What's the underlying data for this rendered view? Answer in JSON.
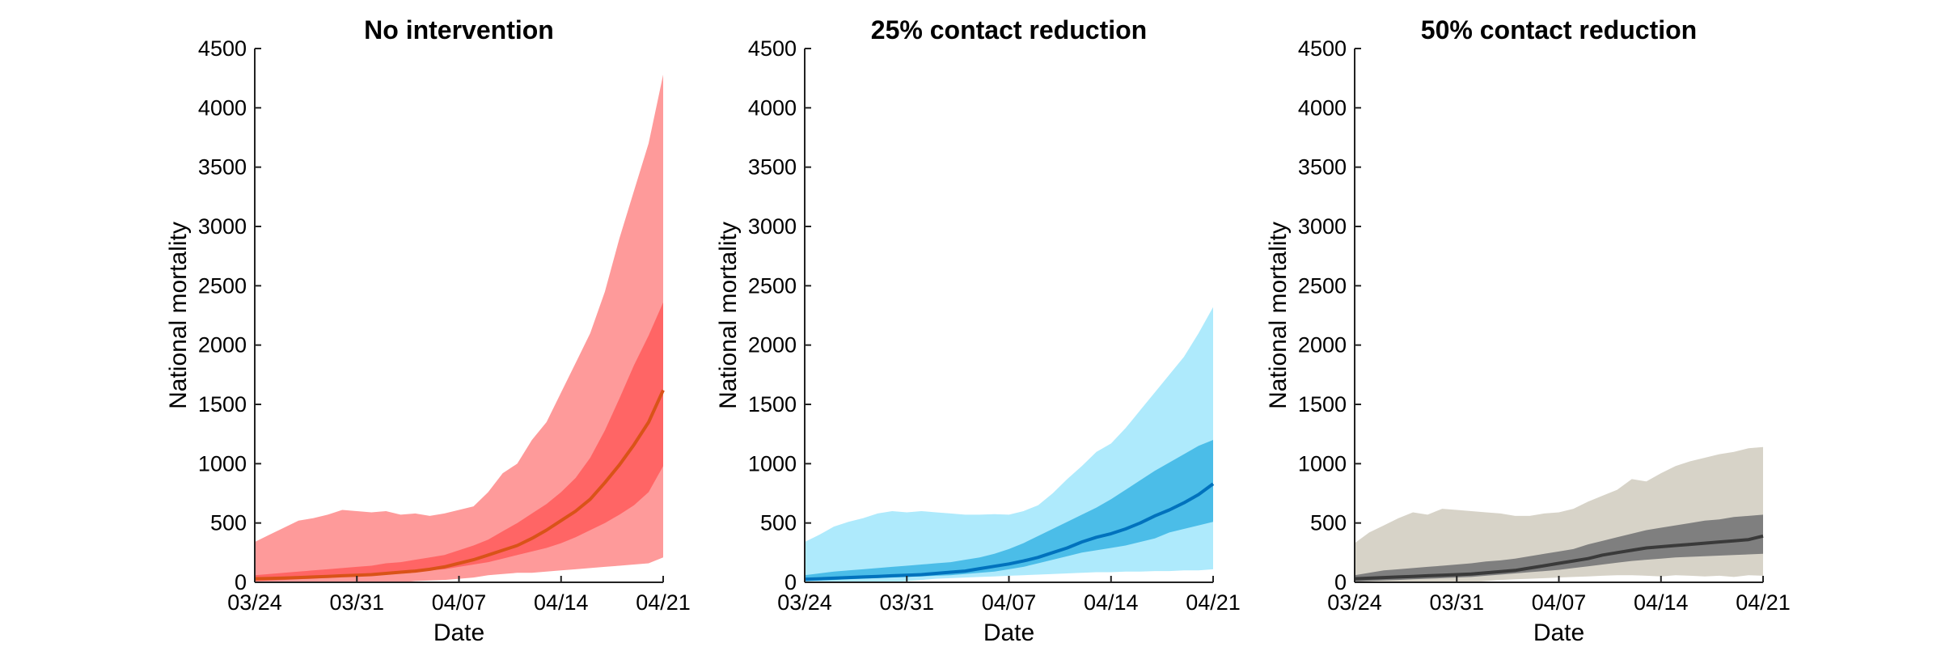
{
  "chart_data": [
    {
      "type": "area",
      "title": "No intervention",
      "xlabel": "Date",
      "ylabel": "National mortality",
      "ylim": [
        0,
        4500
      ],
      "yticks": [
        "0",
        "500",
        "1000",
        "1500",
        "2000",
        "2500",
        "3000",
        "3500",
        "4000",
        "4500"
      ],
      "xticks": [
        "03/24",
        "03/31",
        "04/07",
        "04/14",
        "04/21"
      ],
      "x": [
        "03/24",
        "03/25",
        "03/26",
        "03/27",
        "03/28",
        "03/29",
        "03/30",
        "03/31",
        "04/01",
        "04/02",
        "04/03",
        "04/04",
        "04/05",
        "04/06",
        "04/07",
        "04/08",
        "04/09",
        "04/10",
        "04/11",
        "04/12",
        "04/13",
        "04/14",
        "04/15",
        "04/16",
        "04/17",
        "04/18",
        "04/19",
        "04/20",
        "04/21"
      ],
      "colors": {
        "outer": "#fe9a9a",
        "inner": "#ff6565",
        "line": "#d95318"
      },
      "series": [
        {
          "band": "outer",
          "lower": [
            0,
            0,
            0,
            0,
            0,
            0,
            0,
            0,
            0,
            0,
            0,
            10,
            15,
            20,
            30,
            40,
            60,
            70,
            80,
            80,
            90,
            100,
            110,
            120,
            130,
            140,
            150,
            160,
            210
          ],
          "upper": [
            340,
            400,
            460,
            520,
            540,
            570,
            610,
            600,
            590,
            600,
            570,
            580,
            560,
            580,
            610,
            640,
            760,
            920,
            1000,
            1200,
            1350,
            1600,
            1850,
            2100,
            2450,
            2900,
            3300,
            3700,
            4280
          ]
        },
        {
          "band": "inner",
          "lower": [
            10,
            15,
            20,
            25,
            30,
            40,
            50,
            55,
            60,
            70,
            80,
            90,
            100,
            110,
            130,
            150,
            170,
            200,
            230,
            260,
            290,
            330,
            380,
            440,
            500,
            570,
            650,
            760,
            980
          ],
          "upper": [
            60,
            70,
            80,
            90,
            100,
            110,
            120,
            130,
            140,
            160,
            170,
            190,
            210,
            230,
            270,
            310,
            360,
            430,
            500,
            580,
            660,
            760,
            880,
            1050,
            1280,
            1550,
            1830,
            2080,
            2360
          ]
        },
        {
          "band": "line",
          "values": [
            30,
            33,
            36,
            40,
            45,
            50,
            55,
            60,
            65,
            75,
            85,
            95,
            110,
            130,
            160,
            190,
            230,
            270,
            310,
            370,
            440,
            520,
            600,
            700,
            840,
            990,
            1160,
            1350,
            1620
          ]
        }
      ]
    },
    {
      "type": "area",
      "title": "25% contact reduction",
      "xlabel": "Date",
      "ylabel": "National mortality",
      "ylim": [
        0,
        4500
      ],
      "yticks": [
        "0",
        "500",
        "1000",
        "1500",
        "2000",
        "2500",
        "3000",
        "3500",
        "4000",
        "4500"
      ],
      "xticks": [
        "03/24",
        "03/31",
        "04/07",
        "04/14",
        "04/21"
      ],
      "x": [
        "03/24",
        "03/25",
        "03/26",
        "03/27",
        "03/28",
        "03/29",
        "03/30",
        "03/31",
        "04/01",
        "04/02",
        "04/03",
        "04/04",
        "04/05",
        "04/06",
        "04/07",
        "04/08",
        "04/09",
        "04/10",
        "04/11",
        "04/12",
        "04/13",
        "04/14",
        "04/15",
        "04/16",
        "04/17",
        "04/18",
        "04/19",
        "04/20",
        "04/21"
      ],
      "colors": {
        "outer": "#aeeafc",
        "inner": "#4bbde8",
        "line": "#0072bd"
      },
      "series": [
        {
          "band": "outer",
          "lower": [
            0,
            0,
            0,
            0,
            0,
            0,
            0,
            10,
            20,
            30,
            35,
            40,
            45,
            50,
            55,
            60,
            65,
            70,
            75,
            80,
            85,
            85,
            90,
            90,
            95,
            95,
            100,
            100,
            110
          ],
          "upper": [
            340,
            400,
            470,
            510,
            540,
            580,
            600,
            590,
            600,
            590,
            580,
            570,
            570,
            575,
            570,
            600,
            650,
            750,
            870,
            980,
            1100,
            1170,
            1300,
            1450,
            1600,
            1750,
            1900,
            2100,
            2320
          ]
        },
        {
          "band": "inner",
          "lower": [
            10,
            15,
            20,
            25,
            30,
            35,
            40,
            45,
            50,
            55,
            60,
            70,
            80,
            90,
            110,
            130,
            160,
            190,
            220,
            250,
            270,
            290,
            310,
            340,
            370,
            420,
            450,
            480,
            510
          ],
          "upper": [
            60,
            75,
            90,
            100,
            110,
            120,
            130,
            140,
            150,
            160,
            170,
            190,
            210,
            240,
            280,
            330,
            390,
            450,
            510,
            570,
            630,
            700,
            780,
            860,
            940,
            1010,
            1080,
            1150,
            1200
          ]
        },
        {
          "band": "line",
          "values": [
            25,
            30,
            35,
            40,
            45,
            50,
            55,
            60,
            65,
            75,
            85,
            95,
            115,
            135,
            155,
            180,
            210,
            250,
            290,
            340,
            380,
            410,
            450,
            500,
            560,
            610,
            670,
            740,
            830
          ]
        }
      ]
    },
    {
      "type": "area",
      "title": "50% contact reduction",
      "xlabel": "Date",
      "ylabel": "National mortality",
      "ylim": [
        0,
        4500
      ],
      "yticks": [
        "0",
        "500",
        "1000",
        "1500",
        "2000",
        "2500",
        "3000",
        "3500",
        "4000",
        "4500"
      ],
      "xticks": [
        "03/24",
        "03/31",
        "04/07",
        "04/14",
        "04/21"
      ],
      "x": [
        "03/24",
        "03/25",
        "03/26",
        "03/27",
        "03/28",
        "03/29",
        "03/30",
        "03/31",
        "04/01",
        "04/02",
        "04/03",
        "04/04",
        "04/05",
        "04/06",
        "04/07",
        "04/08",
        "04/09",
        "04/10",
        "04/11",
        "04/12",
        "04/13",
        "04/14",
        "04/15",
        "04/16",
        "04/17",
        "04/18",
        "04/19",
        "04/20",
        "04/21"
      ],
      "colors": {
        "outer": "#d7d3c8",
        "inner": "#7f7f7f",
        "line": "#3a3a3a"
      },
      "series": [
        {
          "band": "outer",
          "lower": [
            0,
            0,
            0,
            0,
            0,
            0,
            0,
            0,
            0,
            10,
            20,
            25,
            30,
            35,
            40,
            45,
            50,
            55,
            60,
            60,
            55,
            50,
            60,
            55,
            50,
            55,
            45,
            60,
            55
          ],
          "upper": [
            330,
            420,
            480,
            540,
            590,
            570,
            620,
            610,
            600,
            590,
            580,
            560,
            560,
            580,
            590,
            620,
            680,
            730,
            780,
            870,
            850,
            920,
            980,
            1020,
            1050,
            1080,
            1100,
            1130,
            1140
          ]
        },
        {
          "band": "inner",
          "lower": [
            5,
            10,
            15,
            20,
            25,
            30,
            35,
            40,
            45,
            55,
            65,
            75,
            85,
            95,
            105,
            120,
            135,
            150,
            165,
            180,
            190,
            200,
            210,
            215,
            220,
            225,
            230,
            235,
            240
          ],
          "upper": [
            60,
            80,
            100,
            110,
            120,
            130,
            140,
            150,
            160,
            175,
            185,
            200,
            220,
            240,
            260,
            280,
            320,
            350,
            380,
            410,
            440,
            460,
            480,
            500,
            520,
            530,
            550,
            560,
            570
          ]
        },
        {
          "band": "line",
          "values": [
            30,
            35,
            40,
            45,
            50,
            55,
            60,
            65,
            70,
            80,
            90,
            100,
            120,
            140,
            160,
            180,
            200,
            230,
            250,
            270,
            290,
            300,
            310,
            320,
            330,
            340,
            350,
            360,
            390
          ]
        }
      ]
    }
  ]
}
